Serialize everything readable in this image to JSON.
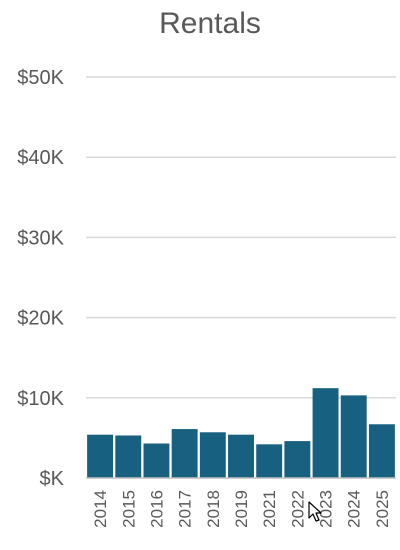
{
  "chart_data": {
    "type": "bar",
    "title": "Rentals",
    "xlabel": "",
    "ylabel": "",
    "categories": [
      "2014",
      "2015",
      "2016",
      "2017",
      "2018",
      "2019",
      "2021",
      "2022",
      "2023",
      "2024",
      "2025"
    ],
    "values": [
      5400,
      5300,
      4300,
      6100,
      5700,
      5400,
      4200,
      4600,
      11200,
      10300,
      6700
    ],
    "ylim": [
      0,
      50000
    ],
    "ytick_values": [
      0,
      10000,
      20000,
      30000,
      40000,
      50000
    ],
    "ytick_labels": [
      "$K",
      "$10K",
      "$20K",
      "$30K",
      "$40K",
      "$50K"
    ],
    "grid": true,
    "bar_color": "#17607f",
    "legend": "none"
  },
  "cursor": {
    "icon": "mouse-pointer-icon"
  }
}
